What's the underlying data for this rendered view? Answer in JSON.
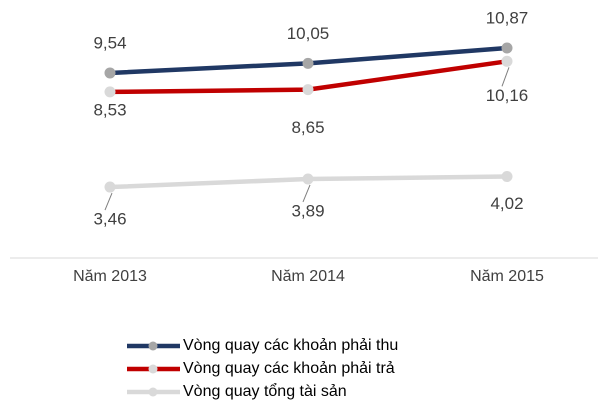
{
  "chart_data": {
    "type": "line",
    "categories": [
      "Năm 2013",
      "Năm 2014",
      "Năm 2015"
    ],
    "series": [
      {
        "name": "Vòng quay các khoản phải thu",
        "color": "#203864",
        "marker_color": "#a6a6a6",
        "values": [
          9.54,
          10.05,
          10.87
        ],
        "value_labels": [
          "9,54",
          "10,05",
          "10,87"
        ]
      },
      {
        "name": "Vòng quay các khoản phải trả",
        "color": "#c00000",
        "marker_color": "#d9d9d9",
        "values": [
          8.53,
          8.65,
          10.16
        ],
        "value_labels": [
          "8,53",
          "8,65",
          "10,16"
        ]
      },
      {
        "name": "Vòng quay tổng tài sản",
        "color": "#d9d9d9",
        "marker_color": "#d9d9d9",
        "values": [
          3.46,
          3.89,
          4.02
        ],
        "value_labels": [
          "3,46",
          "3,89",
          "4,02"
        ]
      }
    ],
    "ylim": [
      0,
      13
    ],
    "grid": false,
    "legend": "bottom"
  }
}
